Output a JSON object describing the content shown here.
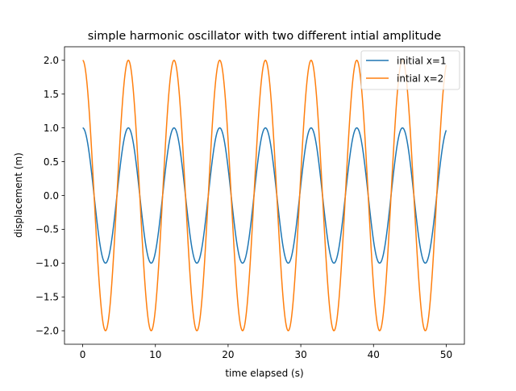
{
  "chart_data": {
    "type": "line",
    "title": "simple harmonic oscillator with two different intial amplitude",
    "xlabel": "time elapsed (s)",
    "ylabel": "displacement (m)",
    "xlim": [
      -2.5,
      52.5
    ],
    "ylim": [
      -2.2,
      2.2
    ],
    "xticks": [
      0,
      10,
      20,
      30,
      40,
      50
    ],
    "yticks": [
      -2.0,
      -1.5,
      -1.0,
      -0.5,
      0.0,
      0.5,
      1.0,
      1.5,
      2.0
    ],
    "x_tick_labels": [
      "0",
      "10",
      "20",
      "30",
      "40",
      "50"
    ],
    "y_tick_labels": [
      "−2.0",
      "−1.5",
      "−1.0",
      "−0.5",
      "0.0",
      "0.5",
      "1.0",
      "1.5",
      "2.0"
    ],
    "grid": false,
    "legend_position": "top-right",
    "x_range": [
      0,
      50
    ],
    "angular_frequency_rad_per_s": 1.0,
    "series": [
      {
        "name": "initial x=1",
        "amplitude": 1,
        "function": "1·cos(t)",
        "color": "#1f77b4"
      },
      {
        "name": "intial x=2",
        "amplitude": 2,
        "function": "2·cos(t)",
        "color": "#ff7f0e"
      }
    ]
  }
}
